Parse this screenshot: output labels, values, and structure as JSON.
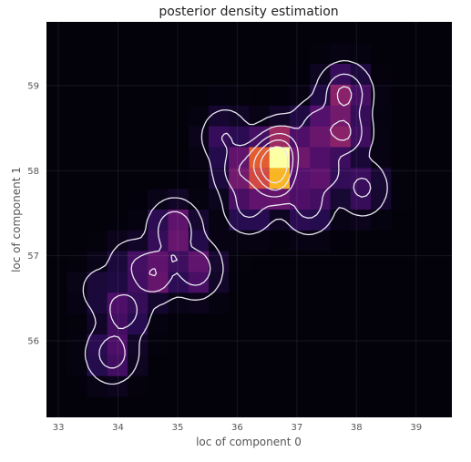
{
  "chart_data": {
    "type": "heatmap",
    "title": "posterior density estimation",
    "xlabel": "loc of component 0",
    "ylabel": "loc of component 1",
    "xlim": [
      32.8,
      39.6
    ],
    "ylim": [
      55.1,
      59.75
    ],
    "xticks": [
      33,
      34,
      35,
      36,
      37,
      38,
      39
    ],
    "yticks": [
      56,
      57,
      58,
      59
    ],
    "grid": true,
    "colormap": "inferno",
    "overlay": "white density contour lines",
    "nx": 20,
    "ny": 19,
    "hotspots": [
      {
        "x": 36.65,
        "y": 58.1,
        "value": 1.0
      },
      {
        "x": 36.65,
        "y": 57.9,
        "value": 0.95
      },
      {
        "x": 36.75,
        "y": 58.25,
        "value": 0.72
      },
      {
        "x": 36.45,
        "y": 58.1,
        "value": 0.58
      },
      {
        "x": 37.8,
        "y": 58.9,
        "value": 0.58
      },
      {
        "x": 37.8,
        "y": 58.45,
        "value": 0.55
      },
      {
        "x": 37.35,
        "y": 58.5,
        "value": 0.38
      },
      {
        "x": 37.45,
        "y": 58.0,
        "value": 0.38
      },
      {
        "x": 36.05,
        "y": 58.0,
        "value": 0.42
      },
      {
        "x": 34.95,
        "y": 57.3,
        "value": 0.5
      },
      {
        "x": 34.6,
        "y": 56.8,
        "value": 0.5
      },
      {
        "x": 35.3,
        "y": 56.85,
        "value": 0.42
      },
      {
        "x": 34.1,
        "y": 56.35,
        "value": 0.35
      },
      {
        "x": 33.9,
        "y": 55.85,
        "value": 0.35
      },
      {
        "x": 37.2,
        "y": 57.6,
        "value": 0.32
      },
      {
        "x": 36.2,
        "y": 57.6,
        "value": 0.3
      },
      {
        "x": 38.1,
        "y": 57.8,
        "value": 0.25
      },
      {
        "x": 35.8,
        "y": 58.4,
        "value": 0.2
      },
      {
        "x": 34.2,
        "y": 56.9,
        "value": 0.12
      },
      {
        "x": 33.7,
        "y": 56.6,
        "value": 0.08
      }
    ]
  }
}
